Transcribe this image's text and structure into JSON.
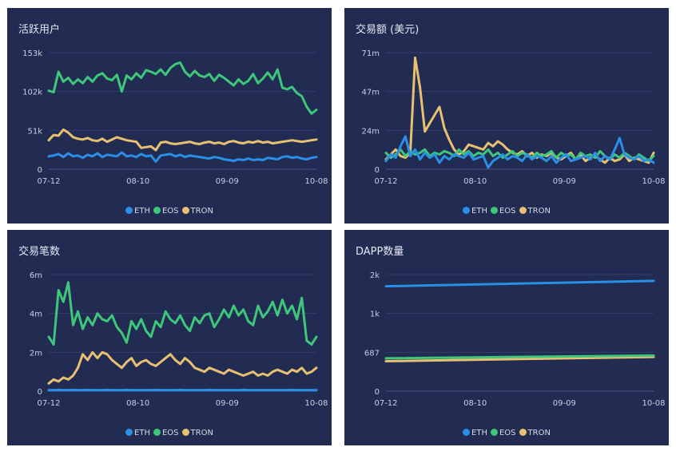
{
  "legend": [
    {
      "name": "ETH",
      "color": "#2a8fe6"
    },
    {
      "name": "EOS",
      "color": "#3ec77a"
    },
    {
      "name": "TRON",
      "color": "#e8c072"
    }
  ],
  "chart_data": [
    {
      "type": "line",
      "title": "活跃用户",
      "x_ticks": [
        "07-12",
        "08-10",
        "09-09",
        "10-08"
      ],
      "y_ticks": [
        "0",
        "51k",
        "102k",
        "153k"
      ],
      "ylim": [
        0,
        153
      ],
      "series": [
        {
          "name": "ETH",
          "values": [
            17,
            18,
            20,
            16,
            21,
            17,
            18,
            15,
            19,
            17,
            21,
            16,
            19,
            18,
            17,
            22,
            17,
            18,
            16,
            20,
            17,
            18,
            10,
            18,
            19,
            20,
            17,
            19,
            16,
            18,
            17,
            16,
            15,
            14,
            16,
            15,
            13,
            12,
            11,
            13,
            12,
            14,
            12,
            13,
            12,
            15,
            14,
            13,
            16,
            17,
            15,
            16,
            14,
            13,
            15,
            16
          ]
        },
        {
          "name": "EOS",
          "values": [
            103,
            101,
            128,
            115,
            120,
            112,
            118,
            113,
            121,
            115,
            123,
            126,
            119,
            117,
            124,
            102,
            123,
            118,
            126,
            120,
            130,
            128,
            125,
            131,
            124,
            133,
            138,
            140,
            128,
            122,
            129,
            123,
            121,
            125,
            116,
            124,
            120,
            115,
            110,
            118,
            112,
            116,
            125,
            113,
            119,
            127,
            118,
            131,
            107,
            105,
            108,
            100,
            96,
            82,
            73,
            78
          ]
        },
        {
          "name": "TRON",
          "values": [
            38,
            45,
            44,
            52,
            48,
            42,
            40,
            39,
            41,
            38,
            37,
            40,
            36,
            39,
            42,
            40,
            38,
            37,
            36,
            28,
            29,
            30,
            25,
            35,
            36,
            34,
            33,
            34,
            35,
            36,
            34,
            33,
            35,
            36,
            34,
            35,
            33,
            36,
            37,
            35,
            34,
            36,
            35,
            37,
            35,
            36,
            34,
            35,
            36,
            37,
            38,
            37,
            36,
            37,
            38,
            39
          ]
        }
      ]
    },
    {
      "type": "line",
      "title": "交易额 (美元)",
      "x_ticks": [
        "07-12",
        "08-10",
        "09-09",
        "10-08"
      ],
      "y_ticks": [
        "0",
        "24m",
        "47m",
        "71m"
      ],
      "ylim": [
        0,
        71
      ],
      "series": [
        {
          "name": "ETH",
          "values": [
            5,
            9,
            7,
            14,
            20,
            8,
            12,
            6,
            10,
            7,
            9,
            4,
            8,
            6,
            9,
            8,
            7,
            10,
            6,
            7,
            8,
            1,
            5,
            7,
            9,
            6,
            8,
            7,
            5,
            9,
            6,
            8,
            7,
            5,
            8,
            4,
            7,
            9,
            5,
            6,
            7,
            8,
            6,
            10,
            5,
            8,
            6,
            12,
            19,
            9,
            7,
            6,
            8,
            5,
            6,
            4
          ]
        },
        {
          "name": "EOS",
          "values": [
            10,
            7,
            9,
            12,
            8,
            11,
            9,
            10,
            12,
            8,
            10,
            9,
            11,
            10,
            8,
            12,
            9,
            11,
            8,
            10,
            9,
            12,
            8,
            10,
            7,
            9,
            11,
            8,
            10,
            9,
            7,
            10,
            8,
            9,
            11,
            7,
            10,
            8,
            9,
            6,
            10,
            8,
            9,
            7,
            11,
            8,
            6,
            9,
            7,
            10,
            8,
            6,
            9,
            7,
            5,
            8
          ]
        },
        {
          "name": "TRON",
          "values": [
            6,
            9,
            12,
            8,
            7,
            10,
            68,
            50,
            23,
            28,
            33,
            38,
            25,
            18,
            12,
            9,
            11,
            15,
            14,
            13,
            12,
            16,
            14,
            17,
            15,
            12,
            10,
            9,
            11,
            8,
            10,
            7,
            9,
            8,
            10,
            7,
            6,
            8,
            10,
            6,
            9,
            5,
            7,
            8,
            6,
            4,
            7,
            5,
            6,
            9,
            5,
            7,
            6,
            5,
            4,
            10
          ]
        }
      ]
    },
    {
      "type": "line",
      "title": "交易笔数",
      "x_ticks": [
        "07-12",
        "08-10",
        "09-09",
        "10-08"
      ],
      "y_ticks": [
        "0",
        "2m",
        "4m",
        "6m"
      ],
      "ylim": [
        0,
        6
      ],
      "series": [
        {
          "name": "ETH",
          "values": [
            0.05,
            0.05,
            0.06,
            0.05,
            0.05,
            0.06,
            0.05,
            0.05,
            0.06,
            0.05,
            0.05,
            0.05,
            0.06,
            0.05,
            0.05,
            0.05,
            0.06,
            0.05,
            0.05,
            0.05,
            0.05,
            0.05,
            0.06,
            0.05,
            0.05,
            0.05,
            0.05,
            0.06,
            0.05,
            0.05,
            0.05,
            0.05,
            0.05,
            0.06,
            0.05,
            0.05,
            0.05,
            0.05,
            0.05,
            0.05,
            0.06,
            0.05,
            0.05,
            0.05,
            0.05,
            0.05,
            0.05,
            0.05,
            0.05,
            0.05,
            0.06,
            0.05,
            0.05,
            0.05,
            0.05,
            0.05
          ]
        },
        {
          "name": "EOS",
          "values": [
            2.8,
            2.4,
            5.2,
            4.6,
            5.6,
            3.4,
            4.1,
            3.2,
            3.8,
            3.4,
            4.0,
            3.7,
            3.6,
            3.9,
            3.3,
            3.0,
            2.5,
            3.6,
            3.2,
            3.7,
            3.1,
            2.8,
            3.6,
            3.3,
            4.1,
            3.7,
            3.5,
            3.9,
            3.4,
            3.1,
            3.8,
            3.5,
            3.9,
            4.0,
            3.3,
            3.7,
            4.2,
            3.8,
            4.4,
            3.9,
            4.2,
            3.6,
            3.4,
            4.4,
            3.8,
            4.1,
            4.6,
            3.9,
            4.7,
            4.0,
            4.4,
            3.7,
            4.8,
            2.6,
            2.4,
            2.8
          ]
        },
        {
          "name": "TRON",
          "values": [
            0.4,
            0.6,
            0.5,
            0.7,
            0.6,
            0.8,
            1.2,
            1.9,
            1.6,
            2.0,
            1.7,
            2.0,
            1.9,
            1.6,
            1.4,
            1.2,
            1.5,
            1.7,
            1.3,
            1.5,
            1.6,
            1.4,
            1.3,
            1.5,
            1.7,
            1.9,
            1.6,
            1.4,
            1.7,
            1.5,
            1.2,
            1.1,
            1.0,
            1.2,
            1.1,
            1.0,
            0.9,
            1.1,
            1.0,
            0.9,
            0.8,
            0.9,
            1.0,
            0.8,
            0.9,
            0.8,
            1.0,
            1.1,
            1.0,
            0.9,
            1.1,
            1.0,
            1.2,
            0.9,
            1.0,
            1.2
          ]
        }
      ]
    },
    {
      "type": "line",
      "title": "DAPP数量",
      "x_ticks": [
        "07-12",
        "08-10",
        "09-09",
        "10-08"
      ],
      "y_ticks": [
        "0",
        "687",
        "1k",
        "2k"
      ],
      "y_tick_values": [
        0,
        687,
        1374,
        2061
      ],
      "ylim": [
        0,
        2061
      ],
      "series": [
        {
          "name": "ETH",
          "values": [
            1855,
            1950
          ]
        },
        {
          "name": "EOS",
          "values": [
            580,
            630
          ]
        },
        {
          "name": "TRON",
          "values": [
            530,
            605
          ]
        }
      ]
    }
  ]
}
